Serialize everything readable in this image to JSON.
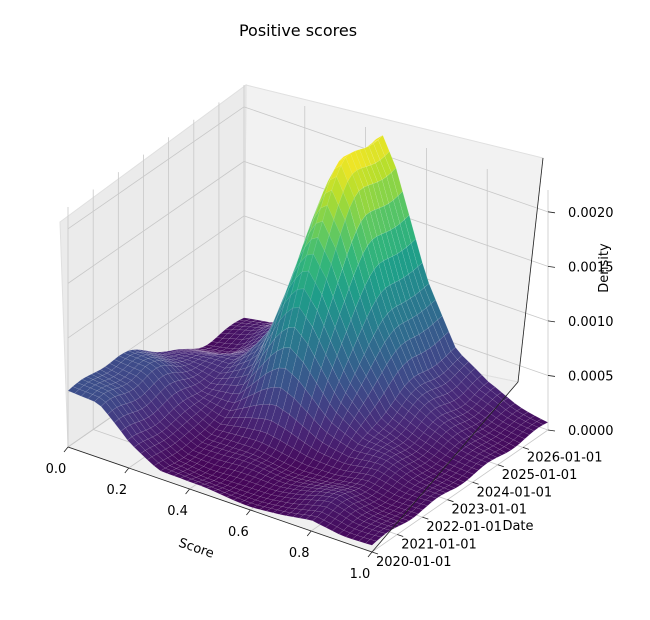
{
  "chart_data": {
    "type": "surface",
    "title": "Positive scores",
    "xlabel": "Score",
    "ylabel": "Date",
    "zlabel": "Density",
    "xlim": [
      0.0,
      1.0
    ],
    "ylim": [
      "2020-01-01",
      "2026-12-31"
    ],
    "zlim": [
      0.0,
      0.0022
    ],
    "x_ticks": [
      "0.0",
      "0.2",
      "0.4",
      "0.6",
      "0.8",
      "1.0"
    ],
    "y_ticks": [
      "2020-01-01",
      "2021-01-01",
      "2022-01-01",
      "2023-01-01",
      "2024-01-01",
      "2025-01-01",
      "2026-01-01"
    ],
    "z_ticks": [
      "0.0000",
      "0.0005",
      "0.0010",
      "0.0015",
      "0.0020"
    ],
    "colormap": "viridis",
    "grid": true,
    "peak": {
      "score": 0.45,
      "date": "2025-09-01",
      "density": 0.0022
    },
    "profile_by_score": {
      "score": [
        0.0,
        0.1,
        0.2,
        0.3,
        0.4,
        0.45,
        0.5,
        0.6,
        0.7,
        0.8,
        0.9,
        1.0
      ],
      "density_at_latest_date": [
        5e-05,
        0.0001,
        0.0003,
        0.0008,
        0.0019,
        0.0022,
        0.0019,
        0.001,
        0.0004,
        0.0002,
        0.0001,
        5e-05
      ],
      "density_at_earliest_date": [
        0.0005,
        0.00045,
        0.0002,
        5e-05,
        2e-05,
        2e-05,
        2e-05,
        2e-05,
        5e-05,
        0.0001,
        5e-05,
        5e-05
      ]
    }
  }
}
